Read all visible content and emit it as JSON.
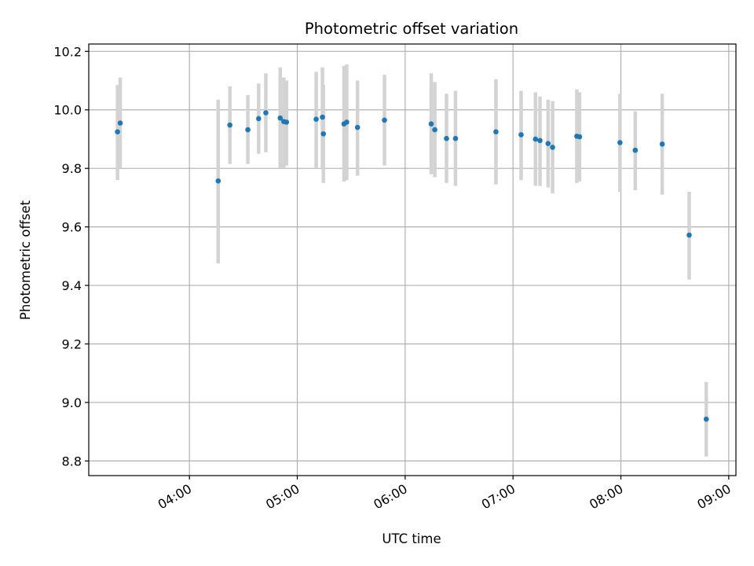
{
  "chart_data": {
    "type": "scatter",
    "title": "Photometric offset variation",
    "xlabel": "UTC time",
    "ylabel": "Photometric offset",
    "x_unit": "time of day (HH:MM, UTC)",
    "xlim": [
      "03:04",
      "09:04"
    ],
    "ylim": [
      8.75,
      10.225
    ],
    "x_ticks": [
      "04:00",
      "05:00",
      "06:00",
      "07:00",
      "08:00",
      "09:00"
    ],
    "y_ticks": [
      8.8,
      9.0,
      9.2,
      9.4,
      9.6,
      9.8,
      10.0,
      10.2
    ],
    "y_tick_labels": [
      "8.8",
      "9.0",
      "9.2",
      "9.4",
      "9.6",
      "9.8",
      "10.0",
      "10.2"
    ],
    "grid": true,
    "colors": {
      "point": "#1f77b4",
      "errorbar": "#d3d3d3",
      "grid": "#b0b0b0",
      "axis": "#000000"
    },
    "points": [
      {
        "x": "03:20:00",
        "y": 9.925,
        "lo": 9.76,
        "hi": 10.085
      },
      {
        "x": "03:21:30",
        "y": 9.955,
        "lo": 9.8,
        "hi": 10.11
      },
      {
        "x": "04:16:00",
        "y": 9.757,
        "lo": 9.475,
        "hi": 10.035
      },
      {
        "x": "04:22:30",
        "y": 9.948,
        "lo": 9.815,
        "hi": 10.08
      },
      {
        "x": "04:32:30",
        "y": 9.932,
        "lo": 9.815,
        "hi": 10.05
      },
      {
        "x": "04:38:30",
        "y": 9.97,
        "lo": 9.85,
        "hi": 10.09
      },
      {
        "x": "04:42:30",
        "y": 9.99,
        "lo": 9.855,
        "hi": 10.125
      },
      {
        "x": "04:50:30",
        "y": 9.972,
        "lo": 9.8,
        "hi": 10.145
      },
      {
        "x": "04:52:30",
        "y": 9.96,
        "lo": 9.8,
        "hi": 10.11
      },
      {
        "x": "04:54:00",
        "y": 9.958,
        "lo": 9.81,
        "hi": 10.1
      },
      {
        "x": "05:10:30",
        "y": 9.968,
        "lo": 9.8,
        "hi": 10.13
      },
      {
        "x": "05:14:00",
        "y": 9.975,
        "lo": 9.8,
        "hi": 10.145
      },
      {
        "x": "05:14:30",
        "y": 9.918,
        "lo": 9.75,
        "hi": 10.085
      },
      {
        "x": "05:26:00",
        "y": 9.952,
        "lo": 9.755,
        "hi": 10.15
      },
      {
        "x": "05:27:30",
        "y": 9.958,
        "lo": 9.76,
        "hi": 10.155
      },
      {
        "x": "05:33:30",
        "y": 9.94,
        "lo": 9.775,
        "hi": 10.1
      },
      {
        "x": "05:48:30",
        "y": 9.965,
        "lo": 9.81,
        "hi": 10.12
      },
      {
        "x": "06:14:30",
        "y": 9.952,
        "lo": 9.78,
        "hi": 10.125
      },
      {
        "x": "06:16:30",
        "y": 9.932,
        "lo": 9.77,
        "hi": 10.095
      },
      {
        "x": "06:23:00",
        "y": 9.902,
        "lo": 9.75,
        "hi": 10.055
      },
      {
        "x": "06:28:00",
        "y": 9.902,
        "lo": 9.74,
        "hi": 10.065
      },
      {
        "x": "06:50:30",
        "y": 9.925,
        "lo": 9.745,
        "hi": 10.105
      },
      {
        "x": "07:04:30",
        "y": 9.915,
        "lo": 9.76,
        "hi": 10.065
      },
      {
        "x": "07:12:30",
        "y": 9.9,
        "lo": 9.74,
        "hi": 10.06
      },
      {
        "x": "07:15:00",
        "y": 9.895,
        "lo": 9.74,
        "hi": 10.045
      },
      {
        "x": "07:19:30",
        "y": 9.885,
        "lo": 9.735,
        "hi": 10.035
      },
      {
        "x": "07:22:00",
        "y": 9.872,
        "lo": 9.715,
        "hi": 10.03
      },
      {
        "x": "07:35:30",
        "y": 9.91,
        "lo": 9.75,
        "hi": 10.07
      },
      {
        "x": "07:37:00",
        "y": 9.908,
        "lo": 9.755,
        "hi": 10.06
      },
      {
        "x": "07:59:30",
        "y": 9.888,
        "lo": 9.72,
        "hi": 10.055
      },
      {
        "x": "08:08:00",
        "y": 9.862,
        "lo": 9.725,
        "hi": 9.995
      },
      {
        "x": "08:23:00",
        "y": 9.883,
        "lo": 9.71,
        "hi": 10.055
      },
      {
        "x": "08:38:00",
        "y": 9.572,
        "lo": 9.42,
        "hi": 9.72
      },
      {
        "x": "08:47:30",
        "y": 8.943,
        "lo": 8.815,
        "hi": 9.07
      }
    ]
  }
}
